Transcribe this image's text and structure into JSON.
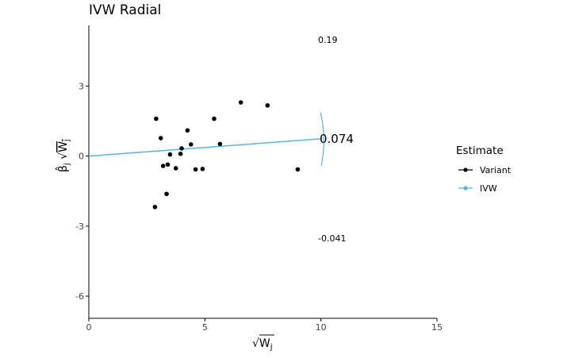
{
  "chart_data": {
    "type": "scatter",
    "title": "IVW Radial",
    "xlabel": "√W_j",
    "ylabel": "β̂_j √W_j",
    "xlim": [
      0,
      15
    ],
    "ylim": [
      -6.95,
      5.6
    ],
    "xticks": [
      "0",
      "5",
      "10",
      "15"
    ],
    "yticks": [
      "-6",
      "-3",
      "0",
      "3"
    ],
    "grid": false,
    "legend": {
      "title": "Estimate",
      "position": "right",
      "entries": [
        {
          "label": "Variant",
          "color": "#000000"
        },
        {
          "label": "IVW",
          "color": "#56B4E9"
        }
      ]
    },
    "series": [
      {
        "name": "Variant",
        "points": [
          {
            "x": 2.9,
            "y": 1.6
          },
          {
            "x": 3.1,
            "y": 0.77
          },
          {
            "x": 2.85,
            "y": -2.18
          },
          {
            "x": 3.2,
            "y": -0.42
          },
          {
            "x": 3.4,
            "y": -0.36
          },
          {
            "x": 3.5,
            "y": 0.07
          },
          {
            "x": 3.35,
            "y": -1.62
          },
          {
            "x": 3.75,
            "y": -0.52
          },
          {
            "x": 4.0,
            "y": 0.33
          },
          {
            "x": 3.95,
            "y": 0.1
          },
          {
            "x": 4.25,
            "y": 1.1
          },
          {
            "x": 4.4,
            "y": 0.5
          },
          {
            "x": 4.6,
            "y": -0.57
          },
          {
            "x": 4.9,
            "y": -0.55
          },
          {
            "x": 5.4,
            "y": 1.6
          },
          {
            "x": 5.65,
            "y": 0.52
          },
          {
            "x": 6.55,
            "y": 2.3
          },
          {
            "x": 7.7,
            "y": 2.17
          },
          {
            "x": 9.0,
            "y": -0.57
          }
        ]
      },
      {
        "name": "IVW",
        "line": {
          "x": [
            0,
            10.05
          ],
          "y": [
            0,
            0.745
          ]
        },
        "estimate_label": "0.074"
      }
    ],
    "annotations": {
      "upper_ci": "0.19",
      "lower_ci": "-0.041"
    },
    "colors": {
      "variant": "#000000",
      "ivw": "#56B4E9"
    }
  }
}
